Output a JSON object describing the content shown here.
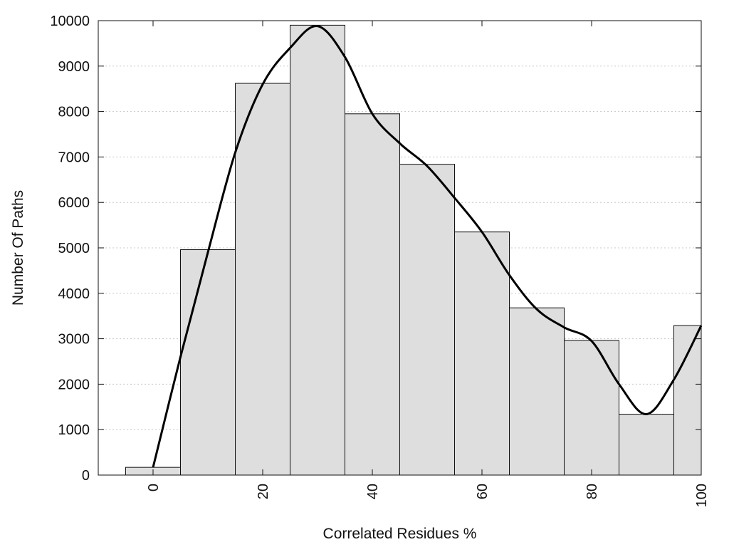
{
  "chart_data": {
    "type": "bar",
    "xlabel": "Correlated Residues %",
    "ylabel": "Number Of Paths",
    "xlim": [
      -10,
      100
    ],
    "ylim": [
      0,
      10000
    ],
    "bin_width": 10,
    "bins": [
      {
        "center": 0,
        "value": 170
      },
      {
        "center": 10,
        "value": 4960
      },
      {
        "center": 20,
        "value": 8620
      },
      {
        "center": 30,
        "value": 9900
      },
      {
        "center": 40,
        "value": 7950
      },
      {
        "center": 50,
        "value": 6840
      },
      {
        "center": 60,
        "value": 5350
      },
      {
        "center": 70,
        "value": 3680
      },
      {
        "center": 80,
        "value": 2960
      },
      {
        "center": 90,
        "value": 1340
      },
      {
        "center": 100,
        "value": 3290
      }
    ],
    "x_ticks": [
      "0",
      "20",
      "40",
      "60",
      "80",
      "100"
    ],
    "x_tick_values": [
      0,
      20,
      40,
      60,
      80,
      100
    ],
    "y_ticks": [
      "0",
      "1000",
      "2000",
      "3000",
      "4000",
      "5000",
      "6000",
      "7000",
      "8000",
      "9000",
      "10000"
    ],
    "y_tick_values": [
      0,
      1000,
      2000,
      3000,
      4000,
      5000,
      6000,
      7000,
      8000,
      9000,
      10000
    ],
    "density_curve": {
      "x": [
        0,
        5,
        10,
        15,
        20,
        25,
        30,
        35,
        40,
        45,
        50,
        55,
        60,
        65,
        70,
        75,
        80,
        85,
        90,
        95,
        100
      ],
      "y": [
        170,
        2600,
        4900,
        7100,
        8600,
        9400,
        9880,
        9200,
        7950,
        7300,
        6800,
        6100,
        5350,
        4400,
        3650,
        3250,
        2950,
        2000,
        1340,
        2100,
        3290
      ]
    },
    "grid": true,
    "frame": true,
    "legend": "none",
    "colors": {
      "bar_fill": "#dedede",
      "bar_edge": "#111111",
      "curve": "#000000",
      "grid": "#c8c8c8"
    }
  }
}
